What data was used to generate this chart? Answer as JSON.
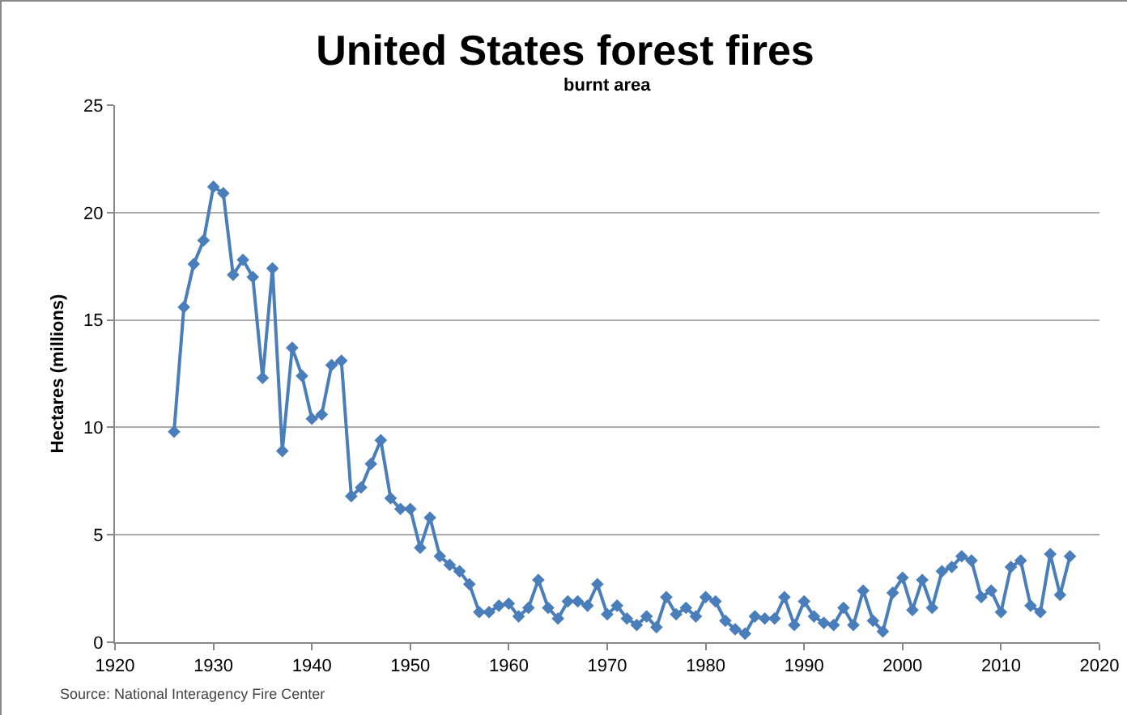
{
  "chart_data": {
    "type": "line",
    "title": "United States forest fires",
    "subtitle": "burnt area",
    "ylabel": "Hectares (millions)",
    "annotations": [
      "Source: National Interagency Fire Center"
    ],
    "x": [
      1926,
      1927,
      1928,
      1929,
      1930,
      1931,
      1932,
      1933,
      1934,
      1935,
      1936,
      1937,
      1938,
      1939,
      1940,
      1941,
      1942,
      1943,
      1944,
      1945,
      1946,
      1947,
      1948,
      1949,
      1950,
      1951,
      1952,
      1953,
      1954,
      1955,
      1956,
      1957,
      1958,
      1959,
      1960,
      1961,
      1962,
      1963,
      1964,
      1965,
      1966,
      1967,
      1968,
      1969,
      1970,
      1971,
      1972,
      1973,
      1974,
      1975,
      1976,
      1977,
      1978,
      1979,
      1980,
      1981,
      1982,
      1983,
      1984,
      1985,
      1986,
      1987,
      1988,
      1989,
      1990,
      1991,
      1992,
      1993,
      1994,
      1995,
      1996,
      1997,
      1998,
      1999,
      2000,
      2001,
      2002,
      2003,
      2004,
      2005,
      2006,
      2007,
      2008,
      2009,
      2010,
      2011,
      2012,
      2013,
      2014,
      2015,
      2016,
      2017
    ],
    "series": [
      {
        "color": "#4a7ebb",
        "values": [
          9.8,
          15.6,
          17.6,
          18.7,
          21.2,
          20.9,
          17.1,
          17.8,
          17.0,
          12.3,
          17.4,
          8.9,
          13.7,
          12.4,
          10.4,
          10.6,
          12.9,
          13.1,
          6.8,
          7.2,
          8.3,
          9.4,
          6.7,
          6.2,
          6.2,
          4.4,
          5.8,
          4.0,
          3.6,
          3.3,
          2.7,
          1.4,
          1.4,
          1.7,
          1.8,
          1.2,
          1.6,
          2.9,
          1.6,
          1.1,
          1.9,
          1.9,
          1.7,
          2.7,
          1.3,
          1.7,
          1.1,
          0.8,
          1.2,
          0.7,
          2.1,
          1.3,
          1.6,
          1.2,
          2.1,
          1.9,
          1.0,
          0.6,
          0.4,
          1.2,
          1.1,
          1.1,
          2.1,
          0.8,
          1.9,
          1.2,
          0.9,
          0.8,
          1.6,
          0.8,
          2.4,
          1.0,
          0.5,
          2.3,
          3.0,
          1.5,
          2.9,
          1.6,
          3.3,
          3.5,
          4.0,
          3.8,
          2.1,
          2.4,
          1.4,
          3.5,
          3.8,
          1.7,
          1.4,
          4.1,
          2.2,
          4.0
        ]
      }
    ],
    "xlim": [
      1920,
      2020
    ],
    "xticks": [
      1920,
      1930,
      1940,
      1950,
      1960,
      1970,
      1980,
      1990,
      2000,
      2010,
      2020
    ],
    "ylim": [
      0,
      25
    ],
    "yticks": [
      0,
      5,
      10,
      15,
      20,
      25
    ],
    "grid": "y",
    "marker": "diamond",
    "line_style": "solid"
  }
}
